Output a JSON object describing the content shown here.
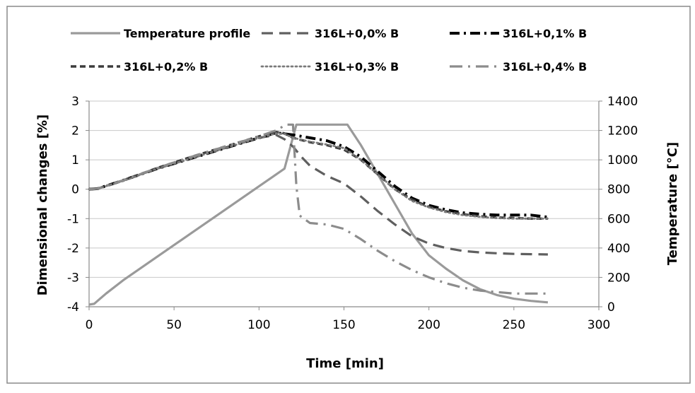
{
  "chart_data": {
    "type": "line",
    "xlabel": "Time [min]",
    "ylabel": "Dimensional changes [%]",
    "y2label": "Temperature [°C]",
    "xlim": [
      0,
      300
    ],
    "ylim": [
      -4,
      3
    ],
    "y2lim": [
      0,
      1400
    ],
    "x_ticks": [
      "0",
      "50",
      "100",
      "150",
      "200",
      "250",
      "300"
    ],
    "y_ticks": [
      "3",
      "2",
      "1",
      "0",
      "-1",
      "-2",
      "-3",
      "-4"
    ],
    "y2_ticks": [
      "1400",
      "1200",
      "1000",
      "800",
      "600",
      "400",
      "200",
      "0"
    ],
    "grid": "horizontal",
    "legend_position": "top",
    "series": [
      {
        "name": "Temperature profile",
        "axis": "right",
        "color": "#9a9a9a",
        "dash": "solid",
        "x": [
          0,
          3,
          6,
          10,
          20,
          40,
          60,
          80,
          100,
          115,
          122,
          130,
          140,
          152,
          160,
          170,
          180,
          190,
          200,
          210,
          220,
          230,
          240,
          250,
          260,
          270
        ],
        "y": [
          15,
          20,
          50,
          90,
          180,
          340,
          500,
          660,
          820,
          940,
          1240,
          1240,
          1240,
          1240,
          1100,
          900,
          700,
          500,
          350,
          260,
          180,
          120,
          80,
          55,
          40,
          30
        ]
      },
      {
        "name": "316L+0,0% B",
        "axis": "left",
        "color": "#5f5f5f",
        "dash": "long",
        "x": [
          0,
          5,
          20,
          40,
          60,
          80,
          100,
          110,
          115,
          120,
          125,
          130,
          140,
          150,
          160,
          170,
          180,
          190,
          200,
          210,
          220,
          230,
          240,
          250,
          260,
          270
        ],
        "y": [
          0,
          0.02,
          0.3,
          0.7,
          1.05,
          1.4,
          1.75,
          1.85,
          1.7,
          1.45,
          1.1,
          0.8,
          0.45,
          0.2,
          -0.25,
          -0.75,
          -1.2,
          -1.6,
          -1.85,
          -2.0,
          -2.1,
          -2.15,
          -2.18,
          -2.2,
          -2.21,
          -2.22
        ]
      },
      {
        "name": "316L+0,1% B",
        "axis": "left",
        "color": "#000000",
        "dash": "dashdot-heavy",
        "x": [
          0,
          5,
          20,
          40,
          60,
          80,
          100,
          110,
          120,
          130,
          140,
          150,
          160,
          170,
          180,
          190,
          200,
          210,
          220,
          230,
          240,
          250,
          260,
          270
        ],
        "y": [
          0,
          0.02,
          0.3,
          0.7,
          1.05,
          1.4,
          1.75,
          1.92,
          1.85,
          1.75,
          1.65,
          1.45,
          1.1,
          0.6,
          0.1,
          -0.3,
          -0.55,
          -0.7,
          -0.8,
          -0.85,
          -0.88,
          -0.88,
          -0.88,
          -0.95
        ]
      },
      {
        "name": "316L+0,2% B",
        "axis": "left",
        "color": "#3c3c3c",
        "dash": "medium",
        "x": [
          0,
          5,
          20,
          40,
          60,
          80,
          100,
          110,
          115,
          120,
          130,
          140,
          150,
          160,
          170,
          180,
          190,
          200,
          210,
          220,
          230,
          240,
          250,
          260,
          270
        ],
        "y": [
          0,
          0.02,
          0.3,
          0.72,
          1.1,
          1.45,
          1.8,
          1.95,
          1.9,
          1.75,
          1.6,
          1.5,
          1.35,
          1.0,
          0.5,
          0.0,
          -0.35,
          -0.6,
          -0.75,
          -0.85,
          -0.92,
          -0.96,
          -0.98,
          -1.0,
          -1.0
        ]
      },
      {
        "name": "316L+0,3% B",
        "axis": "left",
        "color": "#7a7a7a",
        "dash": "dotted",
        "x": [
          0,
          5,
          20,
          40,
          60,
          80,
          100,
          110,
          115,
          120,
          130,
          140,
          150,
          160,
          170,
          180,
          190,
          200,
          210,
          220,
          230,
          240,
          250,
          260,
          270
        ],
        "y": [
          0,
          0.02,
          0.28,
          0.7,
          1.05,
          1.4,
          1.75,
          1.9,
          1.88,
          1.75,
          1.62,
          1.52,
          1.4,
          1.0,
          0.5,
          0.0,
          -0.4,
          -0.62,
          -0.78,
          -0.88,
          -0.94,
          -0.98,
          -1.0,
          -1.0,
          -1.0
        ]
      },
      {
        "name": "316L+0,4% B",
        "axis": "left",
        "color": "#8c8c8c",
        "dash": "dashdot-long",
        "x": [
          0,
          5,
          20,
          40,
          60,
          80,
          100,
          110,
          116,
          120,
          122,
          124,
          130,
          140,
          150,
          160,
          170,
          180,
          190,
          200,
          210,
          220,
          230,
          240,
          250,
          260,
          270
        ],
        "y": [
          0,
          0.02,
          0.3,
          0.72,
          1.1,
          1.45,
          1.8,
          2.0,
          2.2,
          2.2,
          0.1,
          -0.9,
          -1.15,
          -1.2,
          -1.35,
          -1.7,
          -2.1,
          -2.45,
          -2.75,
          -3.0,
          -3.2,
          -3.35,
          -3.45,
          -3.5,
          -3.55,
          -3.55,
          -3.55
        ]
      }
    ]
  }
}
